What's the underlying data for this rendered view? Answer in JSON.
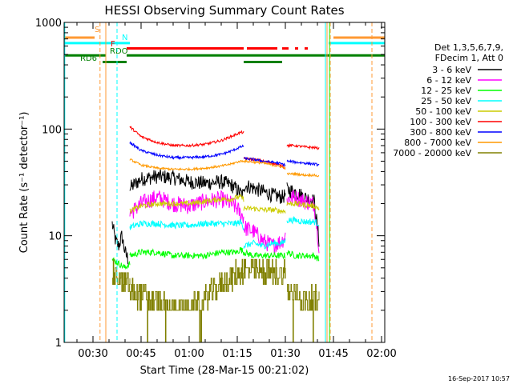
{
  "chart_data": {
    "type": "line",
    "title": "HESSI Observing Summary Count Rates",
    "xlabel": "Start Time (28-Mar-15 00:21:02)",
    "ylabel": "Count Rate (s⁻¹ detector⁻¹)",
    "y_scale": "log",
    "ylim": [
      1,
      1000
    ],
    "xlim_minutes": [
      21.0,
      121.0
    ],
    "x_ticks": [
      {
        "minute": 30,
        "label": "00:30"
      },
      {
        "minute": 45,
        "label": "00:45"
      },
      {
        "minute": 60,
        "label": "01:00"
      },
      {
        "minute": 75,
        "label": "01:15"
      },
      {
        "minute": 90,
        "label": "01:30"
      },
      {
        "minute": 105,
        "label": "01:45"
      },
      {
        "minute": 120,
        "label": "02:00"
      }
    ],
    "y_ticks": [
      {
        "value": 1,
        "label": "1"
      },
      {
        "value": 10,
        "label": "10"
      },
      {
        "value": 100,
        "label": "100"
      },
      {
        "value": 1000,
        "label": "1000"
      }
    ],
    "legend_header": [
      "Det 1,3,5,6,7,9,",
      "FDecim 1, Att 0"
    ],
    "legend_position": "right",
    "series": [
      {
        "name": "3 - 6 keV",
        "color": "#000000",
        "segments": [
          {
            "x": [
              36,
              37,
              38,
              39,
              40,
              41
            ],
            "y": [
              13,
              9,
              8,
              10,
              7,
              6
            ]
          },
          {
            "x": [
              41.5,
              45,
              50,
              55,
              60,
              65,
              70,
              73,
              75,
              76,
              77
            ],
            "y": [
              28,
              34,
              36,
              35,
              32,
              31,
              32,
              30,
              27,
              25,
              24
            ]
          },
          {
            "x": [
              77,
              80,
              83,
              86,
              89,
              90
            ],
            "y": [
              30,
              28,
              26,
              24,
              23,
              24
            ]
          },
          {
            "x": [
              90.5,
              93,
              96,
              99,
              100.5
            ],
            "y": [
              27,
              26,
              23,
              21,
              9
            ]
          }
        ]
      },
      {
        "name": "6 - 12 keV",
        "color": "#ff00ff",
        "segments": [
          {
            "x": [
              41.5,
              45,
              50,
              55,
              60,
              65,
              70,
              73,
              75,
              76,
              77
            ],
            "y": [
              16,
              20,
              23,
              20,
              19,
              21,
              22,
              20,
              18,
              16,
              15
            ]
          },
          {
            "x": [
              77,
              80,
              83,
              86,
              89,
              90
            ],
            "y": [
              12,
              11,
              9,
              8,
              9,
              10
            ]
          },
          {
            "x": [
              90.5,
              93,
              96,
              99,
              100.5
            ],
            "y": [
              22,
              23,
              21,
              20,
              8
            ]
          }
        ]
      },
      {
        "name": "12 - 25 keV",
        "color": "#00ff00",
        "segments": [
          {
            "x": [
              36,
              38,
              40,
              41.5
            ],
            "y": [
              6,
              5.5,
              5,
              5.5
            ]
          },
          {
            "x": [
              41.5,
              45,
              50,
              55,
              60,
              65,
              70,
              73,
              75,
              76,
              77
            ],
            "y": [
              6.5,
              7,
              7,
              6.5,
              6.5,
              6.5,
              7,
              7,
              7,
              7.5,
              7
            ]
          },
          {
            "x": [
              77,
              80,
              83,
              86,
              89,
              90
            ],
            "y": [
              7,
              6.5,
              6.5,
              6.5,
              6.5,
              6.5
            ]
          },
          {
            "x": [
              90.5,
              93,
              96,
              99,
              100.5
            ],
            "y": [
              7,
              6.5,
              6.5,
              6.5,
              6
            ]
          }
        ]
      },
      {
        "name": "25 - 50 keV",
        "color": "#00ffff",
        "segments": [
          {
            "x": [
              41.5,
              45,
              50,
              55,
              60,
              65,
              70,
              73,
              75,
              76,
              77
            ],
            "y": [
              12,
              13,
              13,
              12.5,
              12.5,
              13,
              13,
              13,
              13,
              13.5,
              12
            ]
          },
          {
            "x": [
              77,
              80,
              83,
              86,
              89,
              90
            ],
            "y": [
              8,
              8.5,
              8,
              8.5,
              8.5,
              9
            ]
          },
          {
            "x": [
              90.5,
              93,
              96,
              99,
              100.5
            ],
            "y": [
              14,
              14,
              13.5,
              13.5,
              13
            ]
          }
        ]
      },
      {
        "name": "50 - 100 keV",
        "color": "#cccc00",
        "segments": [
          {
            "x": [
              41.5,
              45,
              50,
              55,
              60,
              65,
              70,
              73,
              75,
              76,
              77
            ],
            "y": [
              17,
              19,
              20,
              20,
              20,
              21,
              22,
              22,
              23,
              23,
              22
            ]
          },
          {
            "x": [
              77,
              80,
              83,
              86,
              89,
              90
            ],
            "y": [
              18,
              18,
              17.5,
              17.5,
              17,
              17
            ]
          },
          {
            "x": [
              90.5,
              93,
              96,
              99,
              100.5
            ],
            "y": [
              20,
              20,
              19.5,
              19,
              18
            ]
          }
        ]
      },
      {
        "name": "100 - 300 keV",
        "color": "#ff0000",
        "segments": [
          {
            "x": [
              41.5,
              45,
              50,
              55,
              60,
              65,
              70,
              73,
              75,
              76,
              77
            ],
            "y": [
              105,
              85,
              75,
              70,
              70,
              72,
              78,
              85,
              90,
              93,
              93
            ]
          },
          {
            "x": [
              77,
              80,
              83,
              86,
              89,
              90
            ],
            "y": [
              53,
              52,
              50,
              48,
              45,
              43
            ]
          },
          {
            "x": [
              90.5,
              93,
              96,
              99,
              100.5
            ],
            "y": [
              70,
              70,
              68,
              67,
              66
            ]
          }
        ]
      },
      {
        "name": "300 - 800 keV",
        "color": "#0000ff",
        "segments": [
          {
            "x": [
              41.5,
              45,
              50,
              55,
              60,
              65,
              70,
              73,
              75,
              76,
              77
            ],
            "y": [
              75,
              63,
              57,
              54,
              54,
              55,
              58,
              62,
              66,
              68,
              69
            ]
          },
          {
            "x": [
              77,
              80,
              83,
              86,
              89,
              90
            ],
            "y": [
              53,
              52,
              50,
              49,
              47,
              46
            ]
          },
          {
            "x": [
              90.5,
              93,
              96,
              99,
              100.5
            ],
            "y": [
              50,
              49,
              48,
              47,
              46
            ]
          }
        ]
      },
      {
        "name": "800 - 7000 keV",
        "color": "#ff9900",
        "segments": [
          {
            "x": [
              41.5,
              45,
              50,
              55,
              60,
              65,
              70,
              73,
              75,
              76,
              77
            ],
            "y": [
              52,
              46,
              43,
              42,
              42,
              43,
              45,
              47,
              49,
              50,
              50
            ]
          },
          {
            "x": [
              77,
              80,
              83,
              86,
              89,
              90
            ],
            "y": [
              50,
              49,
              48,
              46,
              44,
              43
            ]
          },
          {
            "x": [
              90.5,
              93,
              96,
              99,
              100.5
            ],
            "y": [
              38,
              38,
              37,
              37,
              36
            ]
          }
        ]
      },
      {
        "name": "7000 - 20000 keV",
        "color": "#808000",
        "segments": [
          {
            "x": [
              36,
              38,
              40,
              41.5
            ],
            "y": [
              4.5,
              4,
              3.5,
              3.5
            ]
          },
          {
            "x": [
              41.5,
              45,
              48,
              51,
              54,
              57,
              60,
              63,
              66,
              69,
              72,
              75,
              77
            ],
            "y": [
              3,
              2.8,
              2.5,
              2.2,
              2,
              2,
              2,
              2.3,
              2.8,
              3.3,
              3.8,
              4.5,
              4.8
            ]
          },
          {
            "x": [
              77,
              80,
              83,
              86,
              89,
              90
            ],
            "y": [
              4.8,
              4.8,
              4.5,
              4.5,
              4.5,
              4.5
            ]
          },
          {
            "x": [
              90.5,
              93,
              96,
              99,
              100.5
            ],
            "y": [
              3,
              2.8,
              2.5,
              2.5,
              2.5
            ]
          }
        ]
      }
    ],
    "flags": [
      {
        "label": "S",
        "color": "#ff9933",
        "y": 720,
        "segments": [
          [
            21,
            30.5
          ],
          [
            105,
            121
          ]
        ]
      },
      {
        "label": "N",
        "color": "#00ffff",
        "y": 640,
        "segments": [
          [
            21,
            41.5
          ],
          [
            103.5,
            121
          ]
        ]
      },
      {
        "label": "F",
        "color": "#ff0000",
        "y": 570,
        "segments": [
          [
            40.5,
            77
          ],
          [
            78,
            87.5
          ],
          [
            89,
            91
          ],
          [
            93,
            94
          ],
          [
            96,
            97
          ]
        ]
      },
      {
        "label": "RDO",
        "color": "#008000",
        "y": 490,
        "segments": [
          [
            21,
            34
          ],
          [
            40.5,
            121
          ]
        ]
      },
      {
        "label": "RD6",
        "color": "#008000",
        "y": 425,
        "segments": [
          [
            33,
            40.5
          ],
          [
            77,
            89
          ]
        ]
      }
    ],
    "vertical_lines": [
      {
        "x": 21.2,
        "color": "#00ffff",
        "style": "solid"
      },
      {
        "x": 32.2,
        "color": "#ff9933",
        "style": "dashed"
      },
      {
        "x": 34.0,
        "color": "#ff9933",
        "style": "solid"
      },
      {
        "x": 37.5,
        "color": "#00ffff",
        "style": "dashed"
      },
      {
        "x": 102.5,
        "color": "#00ffff",
        "style": "solid"
      },
      {
        "x": 103.0,
        "color": "#ff9933",
        "style": "solid"
      },
      {
        "x": 103.8,
        "color": "#00ff00",
        "style": "solid"
      },
      {
        "x": 104.0,
        "color": "#ff9933",
        "style": "dashed"
      },
      {
        "x": 117.0,
        "color": "#ff9933",
        "style": "dashed"
      }
    ],
    "footer_date": "16-Sep-2017 10:57"
  }
}
